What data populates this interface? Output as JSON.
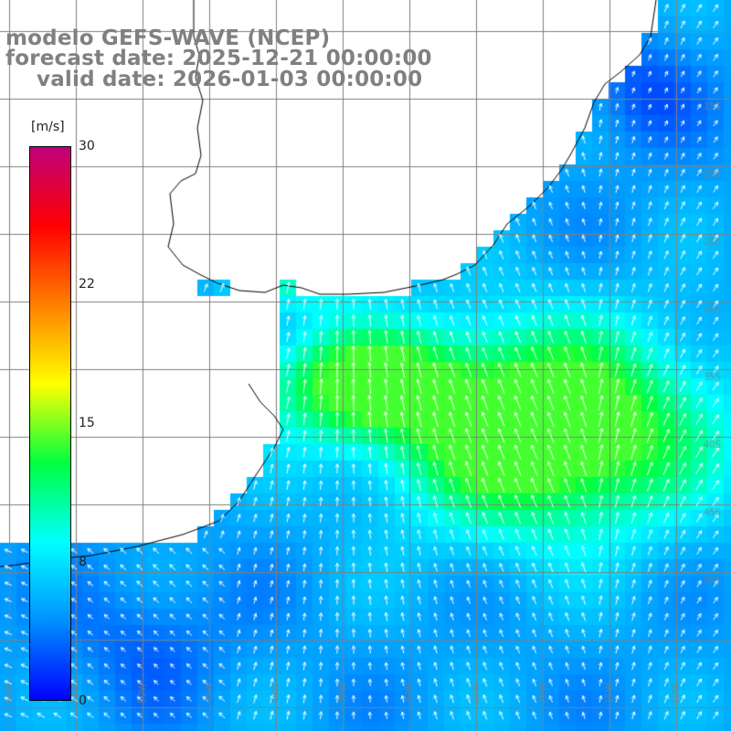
{
  "header": {
    "line1": "modelo GEFS-WAVE (NCEP)",
    "line2": "forecast date: 2025-12-21 00:00:00",
    "line3": "valid date: 2026-01-03 00:00:00"
  },
  "colorbar": {
    "unit": "[m/s]",
    "ticks": [
      {
        "label": "30",
        "value": 30
      },
      {
        "label": "22",
        "value": 22
      },
      {
        "label": "15",
        "value": 15
      },
      {
        "label": "8",
        "value": 8
      },
      {
        "label": "0",
        "value": 0
      }
    ],
    "colors": [
      "#0000ff",
      "#0090ff",
      "#00ffff",
      "#00ff40",
      "#ffff00",
      "#ff8000",
      "#ff0000",
      "#c0007a"
    ]
  },
  "map": {
    "variable": "wind speed and direction",
    "unit": "m/s",
    "background_color": "#ffffff",
    "coastline_color": "#000000",
    "grid_color": "#808080",
    "arrow_color": "#ffffff",
    "grid_labels": {
      "bottom": [
        "60W",
        "55W",
        "50W",
        "45W",
        "40W",
        "35W",
        "30W",
        "25W",
        "20W",
        "15W",
        "10W"
      ],
      "right": [
        "15S",
        "20S",
        "25S",
        "30S",
        "35S",
        "40S",
        "45S",
        "50S"
      ]
    }
  }
}
